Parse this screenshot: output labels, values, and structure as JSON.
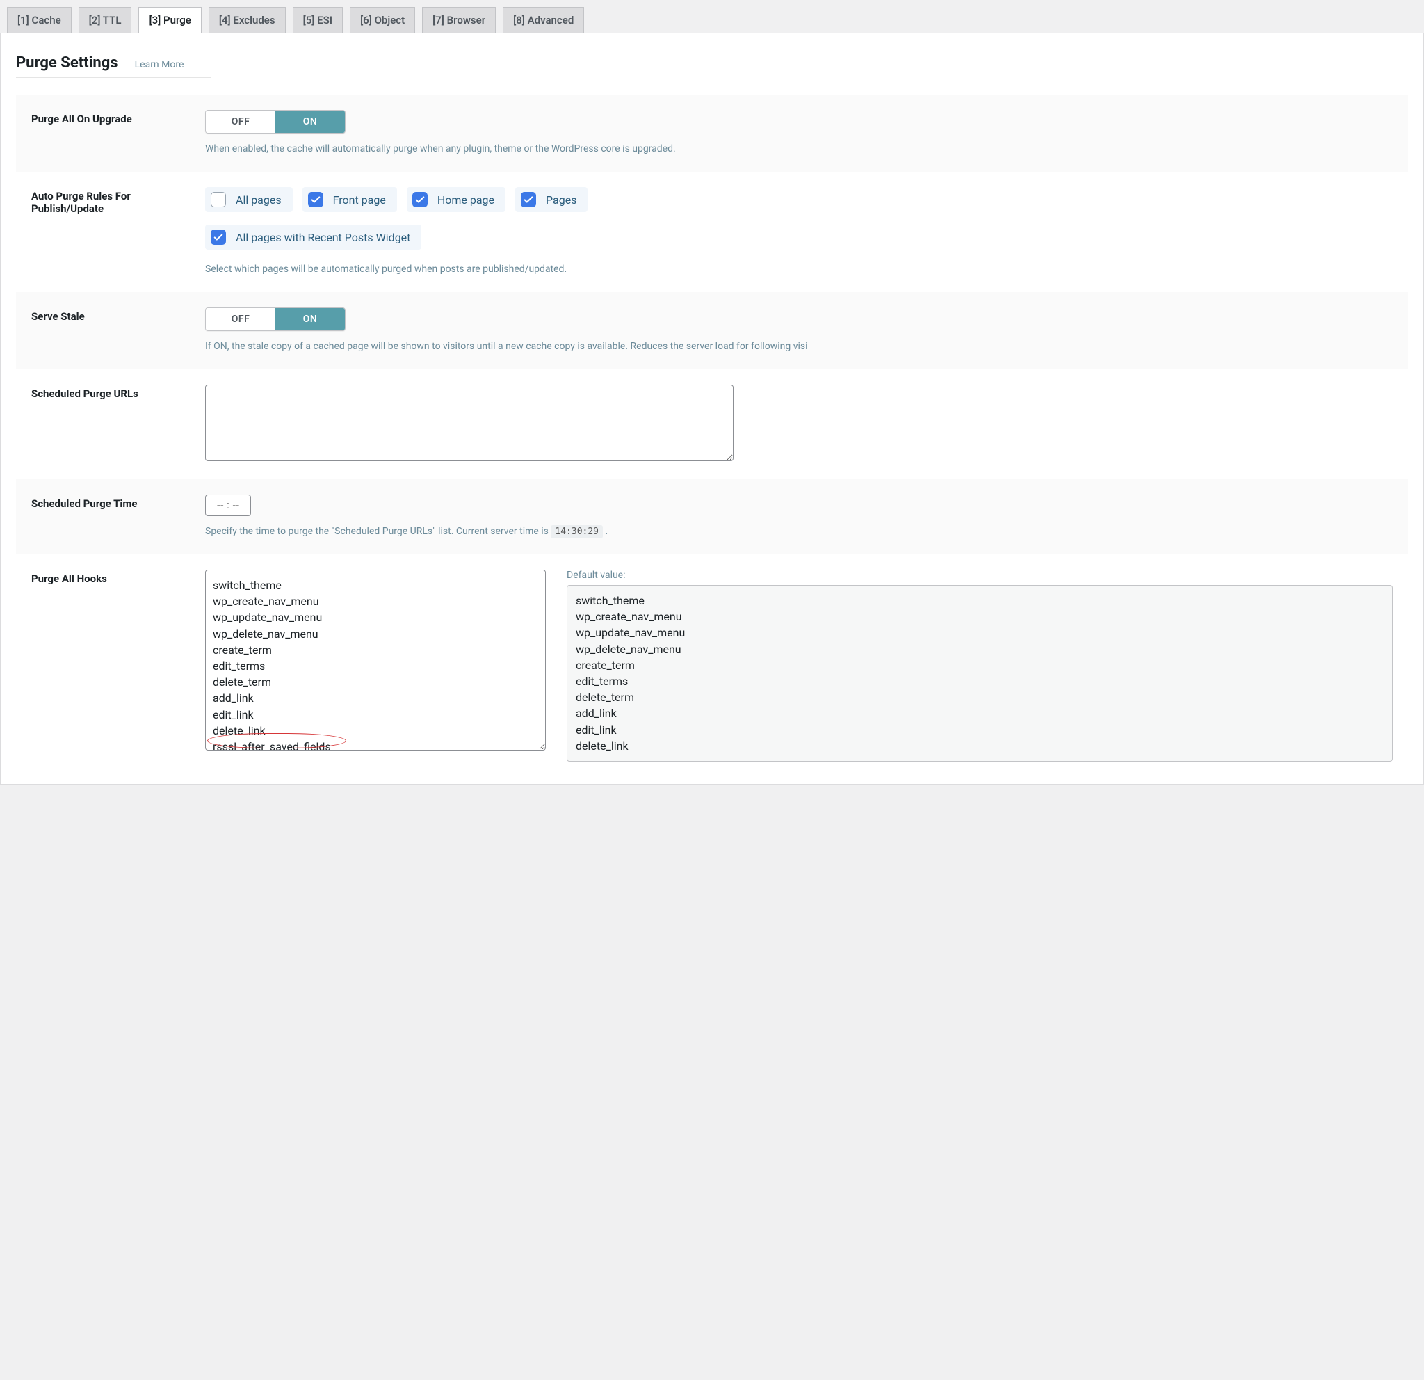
{
  "tabs": [
    {
      "label": "[1] Cache",
      "active": false
    },
    {
      "label": "[2] TTL",
      "active": false
    },
    {
      "label": "[3] Purge",
      "active": true
    },
    {
      "label": "[4] Excludes",
      "active": false
    },
    {
      "label": "[5] ESI",
      "active": false
    },
    {
      "label": "[6] Object",
      "active": false
    },
    {
      "label": "[7] Browser",
      "active": false
    },
    {
      "label": "[8] Advanced",
      "active": false
    }
  ],
  "page_title": "Purge Settings",
  "learn_more": "Learn More",
  "toggle": {
    "off": "OFF",
    "on": "ON"
  },
  "colors": {
    "toggle_on_bg": "#579eaa",
    "checkbox_checked_bg": "#3b78e7",
    "chk_pill_bg": "#f1f6fb",
    "desc_text": "#6b8a99",
    "annotation": "#d63638"
  },
  "rows": {
    "purge_upgrade": {
      "label": "Purge All On Upgrade",
      "value": "ON",
      "desc": "When enabled, the cache will automatically purge when any plugin, theme or the WordPress core is upgraded."
    },
    "auto_purge_rules": {
      "label": "Auto Purge Rules For Publish/Update",
      "desc": "Select which pages will be automatically purged when posts are published/updated.",
      "row1": [
        {
          "label": "All pages",
          "checked": false
        },
        {
          "label": "Front page",
          "checked": true
        },
        {
          "label": "Home page",
          "checked": true
        },
        {
          "label": "Pages",
          "checked": true
        }
      ],
      "row2": [
        {
          "label": "All pages with Recent Posts Widget",
          "checked": true
        }
      ]
    },
    "serve_stale": {
      "label": "Serve Stale",
      "value": "ON",
      "desc": "If ON, the stale copy of a cached page will be shown to visitors until a new cache copy is available. Reduces the server load for following visi"
    },
    "scheduled_urls": {
      "label": "Scheduled Purge URLs",
      "value": ""
    },
    "scheduled_time": {
      "label": "Scheduled Purge Time",
      "value": "-- : --",
      "desc_prefix": "Specify the time to purge the \"Scheduled Purge URLs\" list. Current server time is ",
      "server_time": "14:30:29",
      "desc_suffix": "."
    },
    "purge_hooks": {
      "label": "Purge All Hooks",
      "value_lines": [
        "switch_theme",
        "wp_create_nav_menu",
        "wp_update_nav_menu",
        "wp_delete_nav_menu",
        "create_term",
        "edit_terms",
        "delete_term",
        "add_link",
        "edit_link",
        "delete_link",
        "rsssl_after_saved_fields"
      ],
      "circled_line": "rsssl_after_saved_fields",
      "default_label": "Default value:",
      "default_lines": [
        "switch_theme",
        "wp_create_nav_menu",
        "wp_update_nav_menu",
        "wp_delete_nav_menu",
        "create_term",
        "edit_terms",
        "delete_term",
        "add_link",
        "edit_link",
        "delete_link"
      ]
    }
  }
}
